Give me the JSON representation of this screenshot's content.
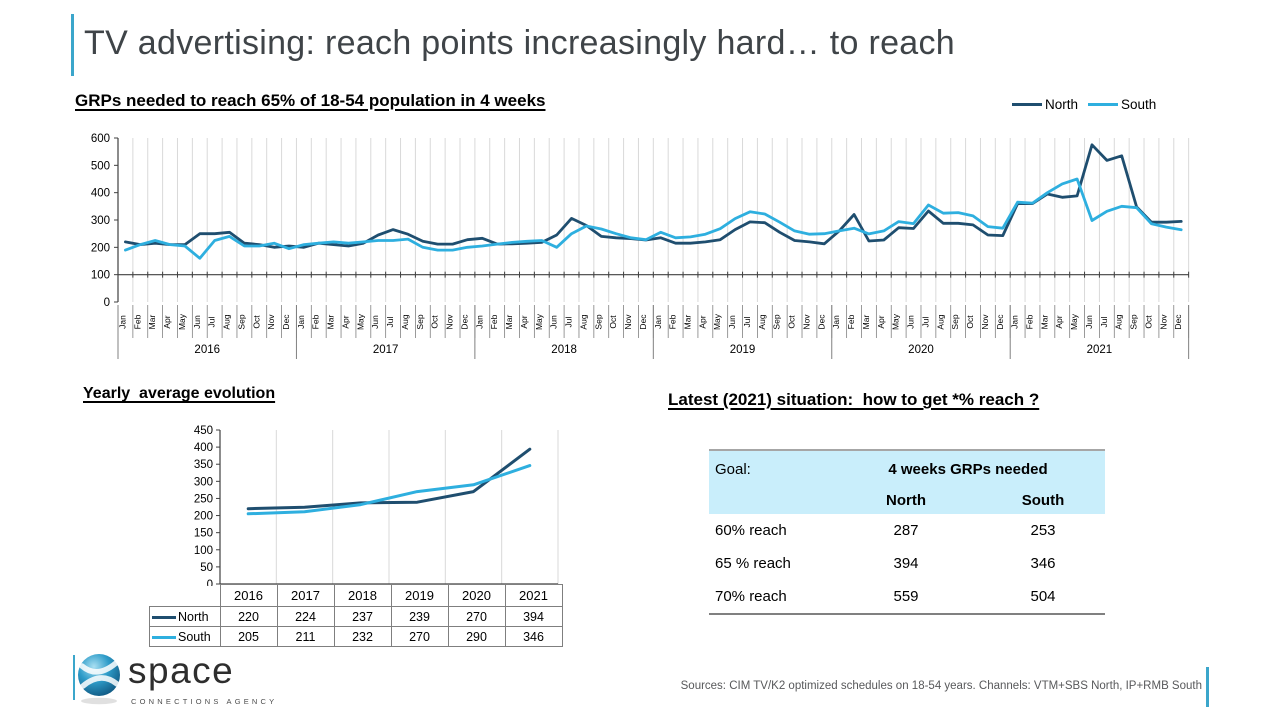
{
  "slide": {
    "title": "TV advertising: reach points increasingly hard… to reach",
    "accent_color": "#3BA6CB"
  },
  "reach_section": {
    "heading": "Latest (2021) situation:  how to get *% reach ?",
    "table": {
      "header_bg": "#C9EEFB",
      "header_col1": "Goal:",
      "header_span": "4 weeks GRPs needed",
      "col_headers": [
        "North",
        "South"
      ],
      "rows": [
        {
          "label": "60% reach",
          "north": "287",
          "south": "253"
        },
        {
          "label": "65 % reach",
          "north": "394",
          "south": "346"
        },
        {
          "label": "70% reach",
          "north": "559",
          "south": "504"
        }
      ]
    }
  },
  "footer": {
    "logo_text": "space",
    "logo_subtitle": "CONNECTIONS AGENCY",
    "sources": "Sources: CIM TV/K2 optimized schedules on 18-54 years. Channels: VTM+SBS North, IP+RMB South"
  },
  "chart_data": [
    {
      "id": "monthly-grps",
      "type": "line",
      "title": "GRPs needed to reach 65% of 18-54 population in 4 weeks",
      "months": [
        "Jan",
        "Feb",
        "Mar",
        "Apr",
        "May",
        "Jun",
        "Jul",
        "Aug",
        "Sep",
        "Oct",
        "Nov",
        "Dec"
      ],
      "years": [
        "2016",
        "2017",
        "2018",
        "2019",
        "2020",
        "2021"
      ],
      "ylim": [
        0,
        600
      ],
      "ytick_step": 100,
      "grid": "vertical-monthly",
      "legend_position": "top-right",
      "series": [
        {
          "name": "North",
          "color": "#1F4E6F",
          "values": [
            220,
            210,
            215,
            210,
            210,
            250,
            250,
            255,
            215,
            210,
            200,
            205,
            200,
            215,
            210,
            205,
            215,
            245,
            265,
            248,
            222,
            212,
            212,
            228,
            233,
            212,
            213,
            215,
            218,
            245,
            306,
            280,
            240,
            235,
            232,
            227,
            235,
            215,
            215,
            220,
            228,
            265,
            293,
            290,
            255,
            225,
            220,
            213,
            260,
            320,
            223,
            227,
            272,
            269,
            333,
            288,
            288,
            282,
            245,
            243,
            360,
            360,
            395,
            383,
            388,
            575,
            518,
            535,
            348,
            292,
            292,
            295
          ]
        },
        {
          "name": "South",
          "color": "#2EAFDF",
          "values": [
            190,
            210,
            225,
            210,
            205,
            160,
            225,
            240,
            205,
            205,
            215,
            195,
            210,
            215,
            220,
            215,
            220,
            225,
            225,
            230,
            200,
            190,
            190,
            200,
            205,
            212,
            218,
            222,
            225,
            200,
            250,
            278,
            267,
            250,
            235,
            228,
            255,
            235,
            238,
            248,
            268,
            305,
            330,
            322,
            292,
            260,
            248,
            250,
            260,
            270,
            249,
            260,
            294,
            287,
            355,
            325,
            327,
            315,
            276,
            270,
            365,
            362,
            400,
            432,
            450,
            298,
            332,
            350,
            345,
            286,
            274,
            264
          ]
        }
      ]
    },
    {
      "id": "yearly-average",
      "type": "line",
      "title": "Yearly  average evolution",
      "categories": [
        "2016",
        "2017",
        "2018",
        "2019",
        "2020",
        "2021"
      ],
      "ylim": [
        0,
        450
      ],
      "ytick_step": 50,
      "grid": "vertical-yearly",
      "series": [
        {
          "name": "North",
          "color": "#1F4E6F",
          "values": [
            220,
            224,
            237,
            239,
            270,
            394
          ]
        },
        {
          "name": "South",
          "color": "#2EAFDF",
          "values": [
            205,
            211,
            232,
            270,
            290,
            346
          ]
        }
      ]
    }
  ]
}
